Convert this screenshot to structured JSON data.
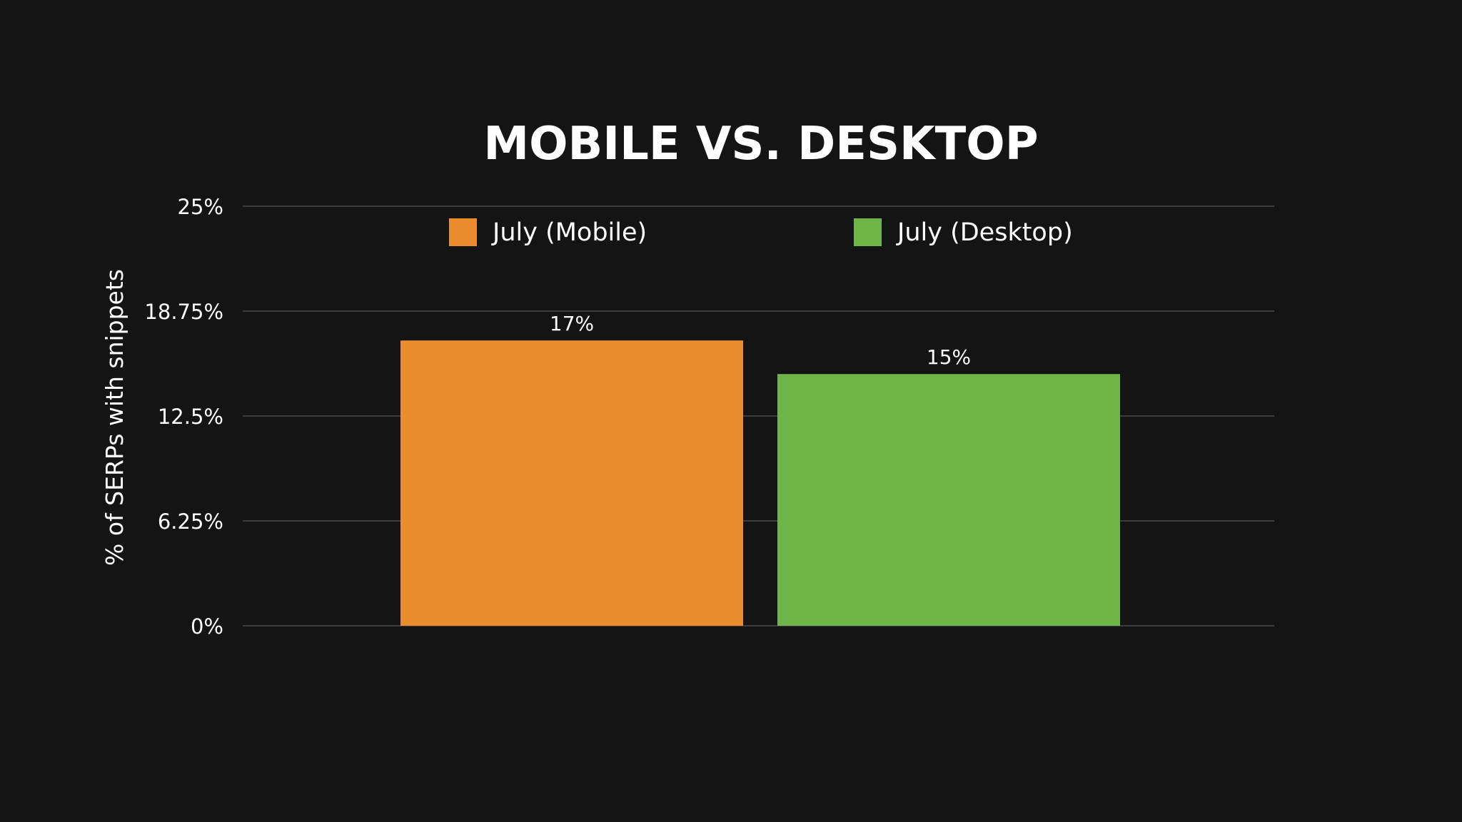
{
  "chart_data": {
    "type": "bar",
    "title": "MOBILE VS. DESKTOP",
    "xlabel": "",
    "ylabel": "% of SERPs with snippets",
    "ylim": [
      0,
      25
    ],
    "yticks": [
      0,
      6.25,
      12.5,
      18.75,
      25
    ],
    "ytick_labels": [
      "0%",
      "6.25%",
      "12.5%",
      "18.75%",
      "25%"
    ],
    "grid": true,
    "legend_position": "top",
    "series": [
      {
        "name": "July (Mobile)",
        "values": [
          17
        ],
        "color": "#EB8C2F",
        "data_label": "17%"
      },
      {
        "name": "July (Desktop)",
        "values": [
          15
        ],
        "color": "#6FB449",
        "data_label": "15%"
      }
    ]
  }
}
